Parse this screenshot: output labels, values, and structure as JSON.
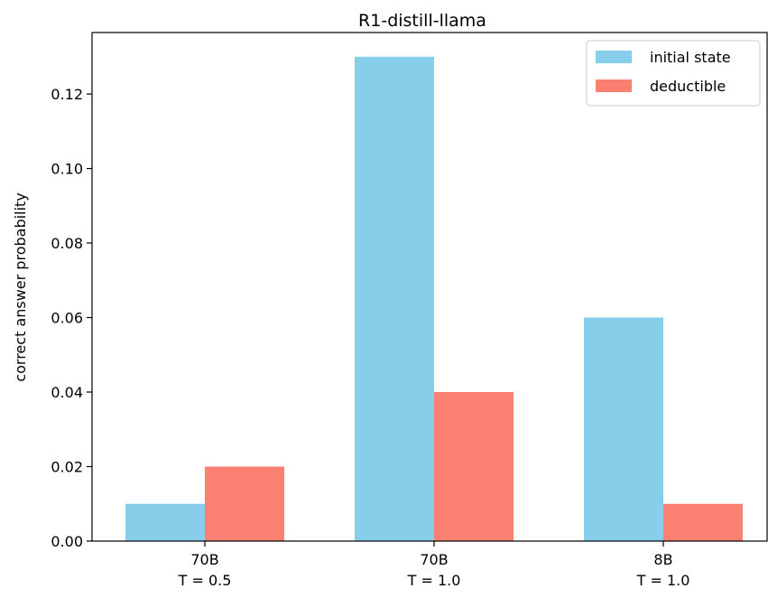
{
  "chart_data": {
    "type": "bar",
    "title": "R1-distill-llama",
    "xlabel": "",
    "ylabel": "correct answer probability",
    "categories": [
      [
        "70B",
        "T = 0.5"
      ],
      [
        "70B",
        "T = 1.0"
      ],
      [
        "8B",
        "T = 1.0"
      ]
    ],
    "series": [
      {
        "name": "initial state",
        "color": "#87ceeb",
        "values": [
          0.01,
          0.13,
          0.06
        ]
      },
      {
        "name": "deductible",
        "color": "#fa8072",
        "values": [
          0.02,
          0.04,
          0.01
        ]
      }
    ],
    "ylim": [
      0,
      0.1365
    ],
    "yticks": [
      "0.00",
      "0.02",
      "0.04",
      "0.06",
      "0.08",
      "0.10",
      "0.12"
    ],
    "legend_position": "top-right",
    "grid": false
  }
}
